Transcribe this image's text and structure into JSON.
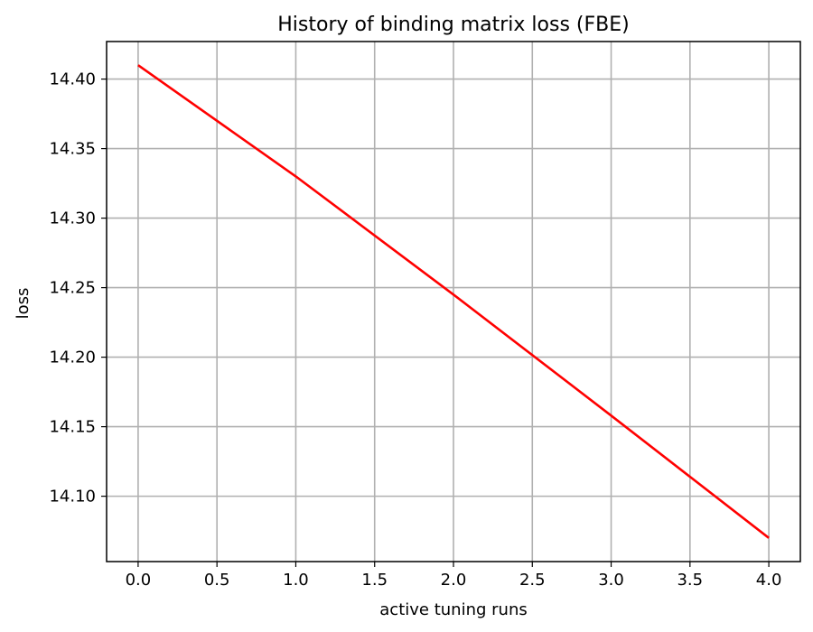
{
  "chart_data": {
    "type": "line",
    "title": "History of binding matrix loss (FBE)",
    "xlabel": "active tuning runs",
    "ylabel": "loss",
    "x": [
      0,
      1,
      2,
      3,
      4
    ],
    "series": [
      {
        "values": [
          14.41,
          14.33,
          14.245,
          14.158,
          14.07
        ],
        "color": "#ff0000"
      }
    ],
    "xlim": [
      -0.2,
      4.2
    ],
    "ylim": [
      14.053,
      14.427
    ],
    "xticks": [
      0.0,
      0.5,
      1.0,
      1.5,
      2.0,
      2.5,
      3.0,
      3.5,
      4.0
    ],
    "xtick_labels": [
      "0.0",
      "0.5",
      "1.0",
      "1.5",
      "2.0",
      "2.5",
      "3.0",
      "3.5",
      "4.0"
    ],
    "yticks": [
      14.1,
      14.15,
      14.2,
      14.25,
      14.3,
      14.35,
      14.4
    ],
    "ytick_labels": [
      "14.10",
      "14.15",
      "14.20",
      "14.25",
      "14.30",
      "14.35",
      "14.40"
    ],
    "grid": true,
    "legend": false
  }
}
